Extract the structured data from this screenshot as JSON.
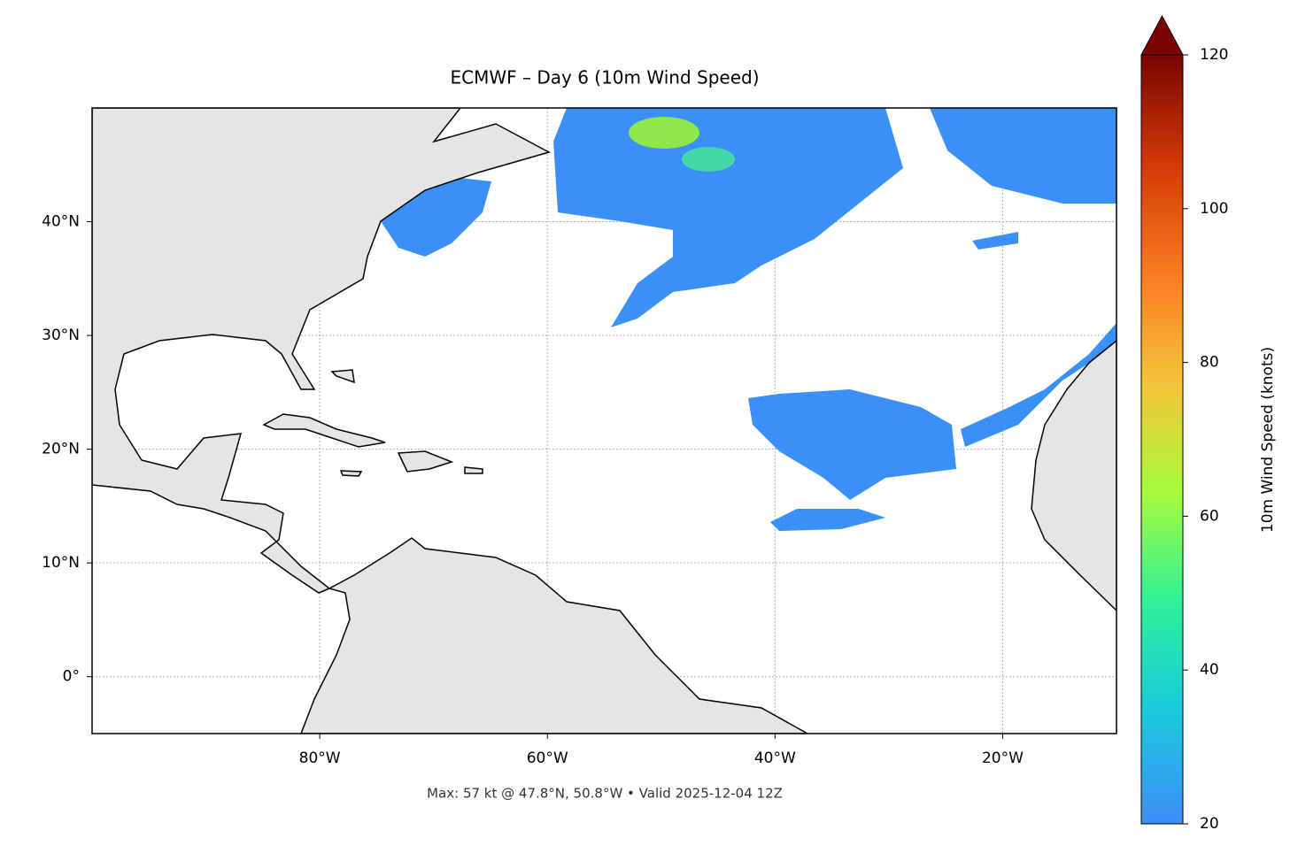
{
  "chart_data": {
    "type": "map",
    "title": "ECMWF – Day 6 (10m Wind Speed)",
    "footer": "Max: 57 kt @ 47.8°N, 50.8°W • Valid 2025-12-04 12Z",
    "xlim": [
      -100,
      -10
    ],
    "ylim": [
      -5,
      50
    ],
    "xticks": [
      {
        "value": -80,
        "label": "80°W"
      },
      {
        "value": -60,
        "label": "60°W"
      },
      {
        "value": -40,
        "label": "40°W"
      },
      {
        "value": -20,
        "label": "20°W"
      }
    ],
    "yticks": [
      {
        "value": 0,
        "label": "0°"
      },
      {
        "value": 10,
        "label": "10°N"
      },
      {
        "value": 20,
        "label": "20°N"
      },
      {
        "value": 30,
        "label": "30°N"
      },
      {
        "value": 40,
        "label": "40°N"
      }
    ],
    "grid": true,
    "colorbar": {
      "label": "10m Wind Speed (knots)",
      "lim": [
        20,
        120
      ],
      "ticks": [
        20,
        40,
        60,
        80,
        100,
        120
      ],
      "colors": [
        "#3e8ef7",
        "#1bc8de",
        "#2ef09a",
        "#a4fc3b",
        "#f6c43a",
        "#fa7b21",
        "#d23a06",
        "#7a0403"
      ]
    }
  }
}
